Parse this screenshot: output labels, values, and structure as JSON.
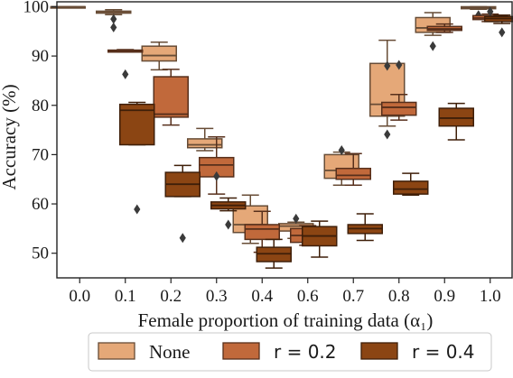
{
  "chart_data": {
    "type": "box",
    "xlabel": "Female proportion of training data (α₁)",
    "ylabel": "Accuracy (%)",
    "ylim": [
      45,
      101
    ],
    "yticks": [
      50,
      60,
      70,
      80,
      90,
      100
    ],
    "categories": [
      "0.0",
      "0.1",
      "0.2",
      "0.3",
      "0.4",
      "0.6",
      "0.7",
      "0.8",
      "0.9",
      "1.0"
    ],
    "legend": {
      "position": "bottom",
      "items": [
        "None",
        "r = 0.2",
        "r = 0.4"
      ]
    },
    "series": [
      {
        "name": "None",
        "color": "#e5a878",
        "boxes": [
          {
            "category": "0.0",
            "whisker_low": 99.9,
            "q1": 99.9,
            "median": 100.0,
            "q3": 100.0,
            "whisker_high": 100.0,
            "outliers": []
          },
          {
            "category": "0.1",
            "whisker_low": 98.4,
            "q1": 98.7,
            "median": 99.0,
            "q3": 99.1,
            "whisker_high": 99.4,
            "outliers": [
              97.5,
              95.8
            ]
          },
          {
            "category": "0.2",
            "whisker_low": 87.2,
            "q1": 89.0,
            "median": 90.1,
            "q3": 92.0,
            "whisker_high": 92.8,
            "outliers": []
          },
          {
            "category": "0.3",
            "whisker_low": 70.8,
            "q1": 71.4,
            "median": 72.0,
            "q3": 73.2,
            "whisker_high": 75.3,
            "outliers": []
          },
          {
            "category": "0.4",
            "whisker_low": 52.0,
            "q1": 54.2,
            "median": 55.8,
            "q3": 59.6,
            "whisker_high": 61.8,
            "outliers": []
          },
          {
            "category": "0.6",
            "whisker_low": 53.0,
            "q1": 54.5,
            "median": 55.5,
            "q3": 56.0,
            "whisker_high": 56.3,
            "outliers": [
              57.0
            ]
          },
          {
            "category": "0.7",
            "whisker_low": 63.8,
            "q1": 65.2,
            "median": 66.8,
            "q3": 70.0,
            "whisker_high": 70.5,
            "outliers": [
              70.9
            ]
          },
          {
            "category": "0.8",
            "whisker_low": 75.8,
            "q1": 77.8,
            "median": 80.2,
            "q3": 88.5,
            "whisker_high": 93.2,
            "outliers": [
              88.0,
              74.1
            ]
          },
          {
            "category": "0.9",
            "whisker_low": 94.2,
            "q1": 94.8,
            "median": 95.7,
            "q3": 97.8,
            "whisker_high": 98.8,
            "outliers": [
              92.0
            ]
          },
          {
            "category": "1.0",
            "whisker_low": 99.5,
            "q1": 99.6,
            "median": 99.8,
            "q3": 100.0,
            "whisker_high": 100.0,
            "outliers": [
              98.3
            ]
          }
        ]
      },
      {
        "name": "r = 0.2",
        "color": "#c1693b",
        "boxes": [
          {
            "category": "0.1",
            "whisker_low": 90.8,
            "q1": 90.8,
            "median": 91.0,
            "q3": 91.2,
            "whisker_high": 91.3,
            "outliers": [
              86.3
            ]
          },
          {
            "category": "0.2",
            "whisker_low": 76.0,
            "q1": 77.6,
            "median": 78.2,
            "q3": 85.8,
            "whisker_high": 87.3,
            "outliers": []
          },
          {
            "category": "0.3",
            "whisker_low": 62.0,
            "q1": 65.5,
            "median": 67.9,
            "q3": 69.4,
            "whisker_high": 73.6,
            "outliers": [
              65.6
            ]
          },
          {
            "category": "0.4",
            "whisker_low": 50.2,
            "q1": 52.8,
            "median": 54.9,
            "q3": 55.8,
            "whisker_high": 58.5,
            "outliers": []
          },
          {
            "category": "0.6",
            "whisker_low": 51.6,
            "q1": 52.2,
            "median": 53.6,
            "q3": 55.0,
            "whisker_high": 55.6,
            "outliers": []
          },
          {
            "category": "0.7",
            "whisker_low": 63.8,
            "q1": 65.0,
            "median": 65.8,
            "q3": 67.2,
            "whisker_high": 70.2,
            "outliers": []
          },
          {
            "category": "0.8",
            "whisker_low": 77.0,
            "q1": 78.0,
            "median": 79.6,
            "q3": 80.6,
            "whisker_high": 82.2,
            "outliers": [
              88.2
            ]
          },
          {
            "category": "0.9",
            "whisker_low": 94.8,
            "q1": 95.2,
            "median": 95.5,
            "q3": 96.0,
            "whisker_high": 96.5,
            "outliers": []
          },
          {
            "category": "1.0",
            "whisker_low": 97.0,
            "q1": 97.4,
            "median": 97.7,
            "q3": 98.2,
            "whisker_high": 98.5,
            "outliers": [
              99.0
            ]
          }
        ]
      },
      {
        "name": "r = 0.4",
        "color": "#8b4513",
        "boxes": [
          {
            "category": "0.1",
            "whisker_low": 72.0,
            "q1": 72.0,
            "median": 79.0,
            "q3": 80.2,
            "whisker_high": 80.6,
            "outliers": [
              58.9
            ]
          },
          {
            "category": "0.2",
            "whisker_low": 61.5,
            "q1": 61.5,
            "median": 64.0,
            "q3": 66.4,
            "whisker_high": 67.8,
            "outliers": [
              53.1
            ]
          },
          {
            "category": "0.3",
            "whisker_low": 58.6,
            "q1": 59.0,
            "median": 59.7,
            "q3": 60.4,
            "whisker_high": 61.2,
            "outliers": [
              55.8
            ]
          },
          {
            "category": "0.4",
            "whisker_low": 47.0,
            "q1": 48.3,
            "median": 49.9,
            "q3": 51.2,
            "whisker_high": 52.8,
            "outliers": []
          },
          {
            "category": "0.6",
            "whisker_low": 49.2,
            "q1": 51.5,
            "median": 53.5,
            "q3": 55.4,
            "whisker_high": 56.5,
            "outliers": []
          },
          {
            "category": "0.7",
            "whisker_low": 52.6,
            "q1": 54.0,
            "median": 55.0,
            "q3": 55.8,
            "whisker_high": 58.0,
            "outliers": []
          },
          {
            "category": "0.8",
            "whisker_low": 61.8,
            "q1": 62.0,
            "median": 63.0,
            "q3": 64.6,
            "whisker_high": 66.2,
            "outliers": []
          },
          {
            "category": "0.9",
            "whisker_low": 73.0,
            "q1": 75.8,
            "median": 77.4,
            "q3": 79.4,
            "whisker_high": 80.4,
            "outliers": []
          },
          {
            "category": "1.0",
            "whisker_low": 96.6,
            "q1": 97.0,
            "median": 97.6,
            "q3": 98.0,
            "whisker_high": 98.3,
            "outliers": [
              94.8
            ]
          }
        ]
      }
    ]
  }
}
